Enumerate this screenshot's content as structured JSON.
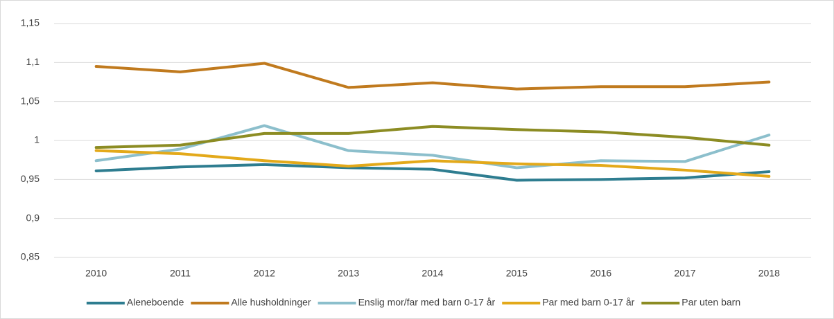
{
  "chart_data": {
    "type": "line",
    "categories": [
      "2010",
      "2011",
      "2012",
      "2013",
      "2014",
      "2015",
      "2016",
      "2017",
      "2018"
    ],
    "series": [
      {
        "name": "Aleneboende",
        "color": "#2e7d90",
        "values": [
          0.961,
          0.966,
          0.969,
          0.965,
          0.963,
          0.949,
          0.95,
          0.952,
          0.96
        ]
      },
      {
        "name": "Alle husholdninger",
        "color": "#c07a1e",
        "values": [
          1.095,
          1.088,
          1.099,
          1.068,
          1.074,
          1.066,
          1.069,
          1.069,
          1.075
        ]
      },
      {
        "name": "Enslig mor/far med barn 0-17 år",
        "color": "#8cbfcc",
        "values": [
          0.974,
          0.989,
          1.019,
          0.987,
          0.981,
          0.965,
          0.974,
          0.973,
          1.007
        ]
      },
      {
        "name": "Par med barn 0-17 år",
        "color": "#e3a91a",
        "values": [
          0.987,
          0.983,
          0.974,
          0.967,
          0.974,
          0.97,
          0.968,
          0.962,
          0.954
        ]
      },
      {
        "name": "Par uten barn",
        "color": "#8c8c23",
        "values": [
          0.991,
          0.994,
          1.009,
          1.009,
          1.018,
          1.014,
          1.011,
          1.004,
          0.994
        ]
      }
    ],
    "ylim": [
      0.85,
      1.15
    ],
    "yticks": [
      {
        "value": 0.85,
        "label": "0,85"
      },
      {
        "value": 0.9,
        "label": "0,9"
      },
      {
        "value": 0.95,
        "label": "0,95"
      },
      1,
      {
        "value": 1.05,
        "label": "1,05"
      },
      {
        "value": 1.1,
        "label": "1,1"
      },
      {
        "value": 1.15,
        "label": "1,15"
      }
    ],
    "grid": true,
    "legend": "bottom"
  }
}
